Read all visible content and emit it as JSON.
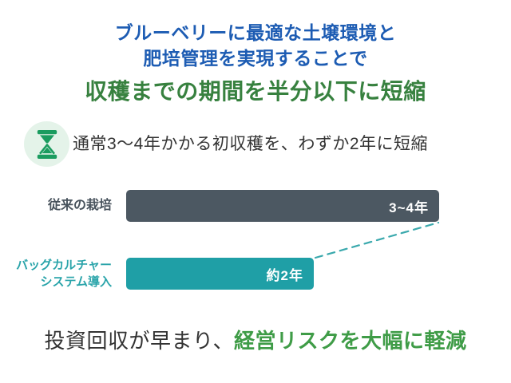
{
  "header": {
    "lead_line1": "ブルーベリーに最適な土壌環境と",
    "lead_line2": "肥培管理を実現することで",
    "title": "収穫までの期間を半分以下に短縮"
  },
  "highlight": {
    "icon": "hourglass-icon",
    "text": "通常3〜4年かかる初収穫を、わずか2年に短縮"
  },
  "chart_data": {
    "type": "bar",
    "orientation": "horizontal",
    "title": "",
    "unit": "年",
    "xlim": [
      0,
      3.75
    ],
    "grid": false,
    "legend": false,
    "categories": [
      "従来の栽培",
      "バッグカルチャー システム導入"
    ],
    "values": [
      3.5,
      2
    ],
    "value_labels": [
      "3~4年",
      "約2年"
    ],
    "rows": [
      {
        "label_line1": "従来の栽培",
        "label_line2": "",
        "value": 3.5,
        "value_label": "3~4年",
        "bar_color": "#4c5862",
        "label_color": "#47525c",
        "bar_width_frac": 1.0
      },
      {
        "label_line1": "バッグカルチャー",
        "label_line2": "システム導入",
        "value": 2,
        "value_label": "約2年",
        "bar_color": "#1f9fa6",
        "label_color": "#2aa4aa",
        "bar_width_frac": 0.6
      }
    ],
    "annotation": "短いバーの右端と長いバーの右端を結ぶ破線コネクタ（期間短縮を示す）"
  },
  "footer": {
    "text_normal": "投資回収が早まり、",
    "text_highlight": "経営リスクを大幅に軽減"
  },
  "colors": {
    "lead_blue": "#1d5cb3",
    "title_green": "#37813f",
    "icon_green": "#1a9c5f",
    "icon_badge_bg": "#e4f3e9",
    "bar_gray": "#4c5862",
    "bar_teal": "#1f9fa6",
    "bar_label_gray": "#47525c",
    "bar_label_teal": "#2aa4aa",
    "connector_teal": "#3aa9ad",
    "footer_green": "#3f9c47",
    "body_text": "#333333",
    "background": "#ffffff"
  }
}
